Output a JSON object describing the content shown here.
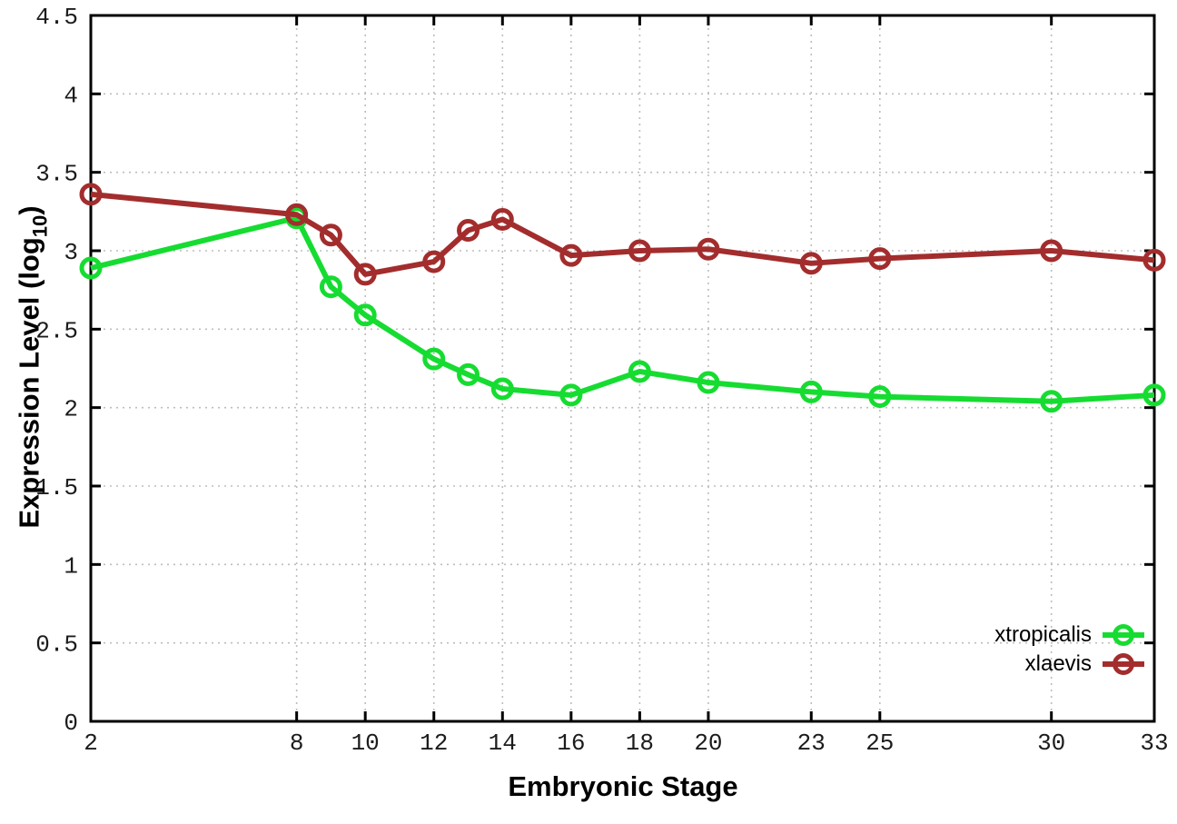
{
  "page": {
    "background": "#ffffff"
  },
  "axes": {
    "x_label": "Embryonic Stage",
    "y_label_prefix": "Expression Level (log",
    "y_label_subscript": "10",
    "y_label_suffix": ")"
  },
  "chart_data": {
    "type": "line",
    "title": "",
    "xlabel": "Embryonic Stage",
    "ylabel": "Expression Level (log10)",
    "x": [
      2,
      8,
      9,
      10,
      12,
      13,
      14,
      16,
      18,
      20,
      23,
      25,
      30,
      33
    ],
    "series": [
      {
        "name": "xtropicalis",
        "color": "#16dc31",
        "marker": "open-circle",
        "values": [
          2.89,
          3.21,
          2.77,
          2.59,
          2.31,
          2.21,
          2.12,
          2.08,
          2.23,
          2.16,
          2.1,
          2.07,
          2.04,
          2.08
        ]
      },
      {
        "name": "xlaevis",
        "color": "#a32d2d",
        "marker": "open-circle",
        "values": [
          3.36,
          3.23,
          3.1,
          2.85,
          2.93,
          3.13,
          3.2,
          2.97,
          3.0,
          3.01,
          2.92,
          2.95,
          3.0,
          2.94
        ]
      }
    ],
    "xlim": [
      2,
      33
    ],
    "ylim": [
      0,
      4.5
    ],
    "x_ticks": [
      2,
      8,
      10,
      12,
      14,
      16,
      18,
      20,
      23,
      25,
      30,
      33
    ],
    "y_ticks": [
      0,
      0.5,
      1,
      1.5,
      2,
      2.5,
      3,
      3.5,
      4,
      4.5
    ],
    "grid": true,
    "grid_color": "#bdbdbd",
    "axis_color": "#000000",
    "tick_label_color": "#1c1c1c",
    "legend_position": "inside-bottom-right"
  }
}
